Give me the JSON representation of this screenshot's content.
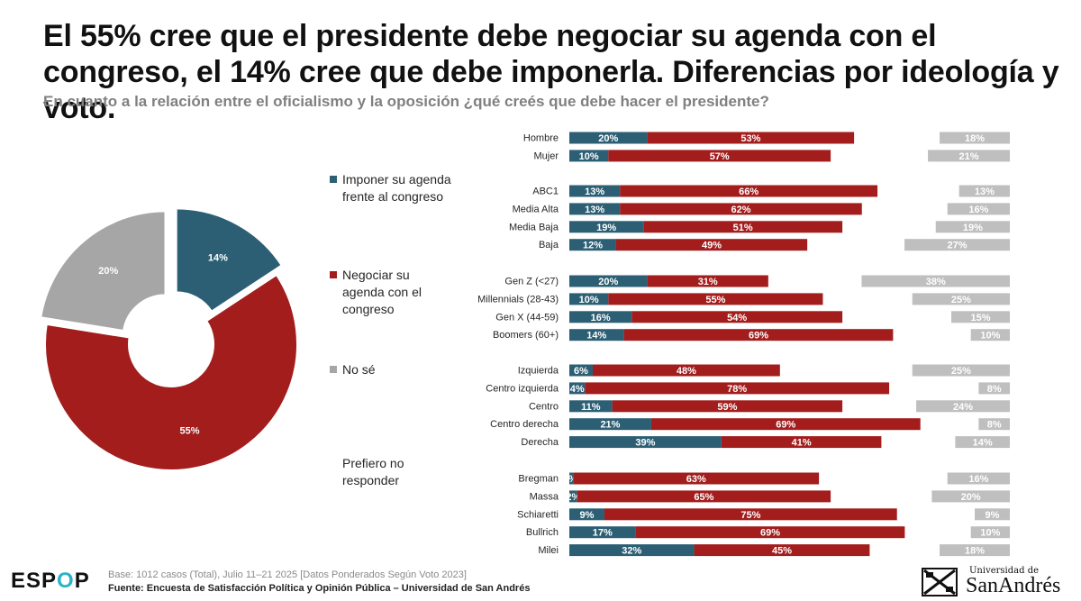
{
  "header": {
    "title": "El 55% cree que el presidente debe negociar su agenda con el congreso, el 14% cree que debe imponerla. Diferencias por ideología y voto.",
    "subtitle": "En cuanto a la relación entre el oficialismo y la oposición ¿qué creés que debe hacer el presidente?"
  },
  "legend": {
    "items": [
      {
        "label": "Imponer su agenda frente al congreso",
        "color": "#2c5f74"
      },
      {
        "label": "Negociar su agenda con el congreso",
        "color": "#a31d1d"
      },
      {
        "label": "No sé",
        "color": "#a6a6a6"
      },
      {
        "label": "Prefiero no responder",
        "color": null
      }
    ]
  },
  "chart_data": [
    {
      "type": "pie",
      "variant": "donut",
      "labels": [
        "Imponer su agenda frente al congreso",
        "Negociar su agenda con el congreso",
        "No sé"
      ],
      "values": [
        14,
        55,
        20
      ],
      "value_labels": [
        "14%",
        "55%",
        "20%"
      ],
      "colors": [
        "#2c5f74",
        "#a31d1d",
        "#a6a6a6"
      ]
    },
    {
      "type": "bar",
      "orientation": "horizontal",
      "stacked": true,
      "categories": [
        "Hombre",
        "Mujer",
        "ABC1",
        "Media Alta",
        "Media Baja",
        "Baja",
        "Gen Z (<27)",
        "Millennials (28-43)",
        "Gen X (44-59)",
        "Boomers (60+)",
        "Izquierda",
        "Centro izquierda",
        "Centro",
        "Centro derecha",
        "Derecha",
        "Bregman",
        "Massa",
        "Schiaretti",
        "Bullrich",
        "Milei"
      ],
      "groups": [
        [
          "Hombre",
          "Mujer"
        ],
        [
          "ABC1",
          "Media Alta",
          "Media Baja",
          "Baja"
        ],
        [
          "Gen Z (<27)",
          "Millennials (28-43)",
          "Gen X (44-59)",
          "Boomers (60+)"
        ],
        [
          "Izquierda",
          "Centro izquierda",
          "Centro",
          "Centro derecha",
          "Derecha"
        ],
        [
          "Bregman",
          "Massa",
          "Schiaretti",
          "Bullrich",
          "Milei"
        ]
      ],
      "series": [
        {
          "name": "Imponer su agenda frente al congreso",
          "color": "#2c5f74",
          "values": [
            20,
            10,
            13,
            13,
            19,
            12,
            20,
            10,
            16,
            14,
            6,
            4,
            11,
            21,
            39,
            1,
            2,
            9,
            17,
            32
          ],
          "labels": [
            "20%",
            "10%",
            "13%",
            "13%",
            "19%",
            "12%",
            "20%",
            "10%",
            "16%",
            "14%",
            "6%",
            "4%",
            "11%",
            "21%",
            "39%",
            "%",
            "2%",
            "9%",
            "17%",
            "32%"
          ]
        },
        {
          "name": "Negociar su agenda con el congreso",
          "color": "#a31d1d",
          "values": [
            53,
            57,
            66,
            62,
            51,
            49,
            31,
            55,
            54,
            69,
            48,
            78,
            59,
            69,
            41,
            63,
            65,
            75,
            69,
            45
          ],
          "labels": [
            "53%",
            "57%",
            "66%",
            "62%",
            "51%",
            "49%",
            "31%",
            "55%",
            "54%",
            "69%",
            "48%",
            "78%",
            "59%",
            "69%",
            "41%",
            "63%",
            "65%",
            "75%",
            "69%",
            "45%"
          ]
        },
        {
          "name": "No sé",
          "color": "#bfbfbf",
          "values": [
            18,
            21,
            13,
            16,
            19,
            27,
            38,
            25,
            15,
            10,
            25,
            8,
            24,
            8,
            14,
            16,
            20,
            9,
            10,
            18
          ],
          "labels": [
            "18%",
            "21%",
            "13%",
            "16%",
            "19%",
            "27%",
            "38%",
            "25%",
            "15%",
            "10%",
            "25%",
            "8%",
            "24%",
            "8%",
            "14%",
            "16%",
            "20%",
            "9%",
            "10%",
            "18%"
          ]
        }
      ]
    }
  ],
  "footer": {
    "logo_main": "ESP",
    "logo_o": "O",
    "logo_end": "P",
    "base": "Base: 1012 casos (Total), Julio 11–21 2025 [Datos Ponderados Según Voto 2023]",
    "source": "Fuente: Encuesta de Satisfacción Política y Opinión Pública – Universidad de San Andrés",
    "university_top": "Universidad de",
    "university_name": "SanAndrés"
  }
}
